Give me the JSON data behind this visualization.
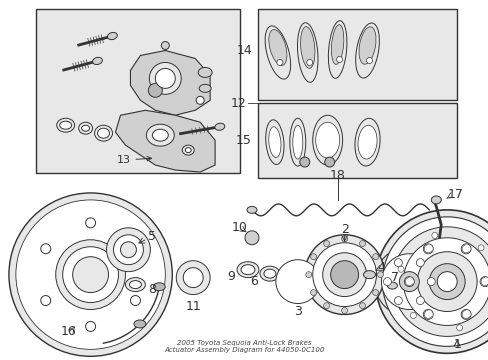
{
  "bg_color": "#ffffff",
  "line_color": "#333333",
  "fill_light": "#e8e8e8",
  "fill_mid": "#d0d0d0",
  "fill_dark": "#b8b8b8",
  "title": "2005 Toyota Sequoia Anti-Lock Brakes\nActuator Assembly Diagram for 44050-0C100"
}
